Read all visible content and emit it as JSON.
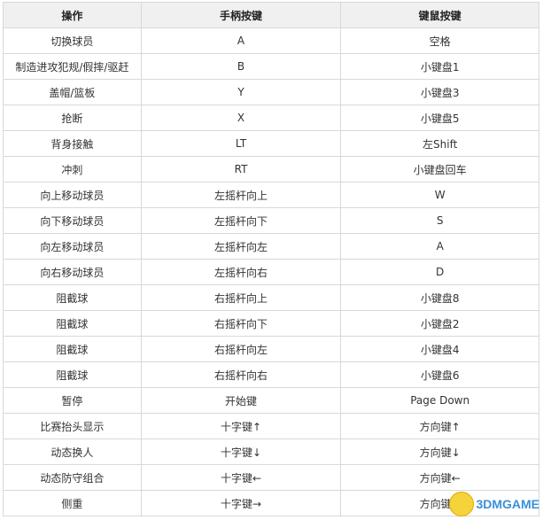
{
  "table": {
    "headers": [
      "操作",
      "手柄按键",
      "键鼠按键"
    ],
    "rows": [
      [
        "切换球员",
        "A",
        "空格"
      ],
      [
        "制造进攻犯规/假摔/驱赶",
        "B",
        "小键盘1"
      ],
      [
        "盖帽/篮板",
        "Y",
        "小键盘3"
      ],
      [
        "抢断",
        "X",
        "小键盘5"
      ],
      [
        "背身接触",
        "LT",
        "左Shift"
      ],
      [
        "冲刺",
        "RT",
        "小键盘回车"
      ],
      [
        "向上移动球员",
        "左摇杆向上",
        "W"
      ],
      [
        "向下移动球员",
        "左摇杆向下",
        "S"
      ],
      [
        "向左移动球员",
        "左摇杆向左",
        "A"
      ],
      [
        "向右移动球员",
        "左摇杆向右",
        "D"
      ],
      [
        "阻截球",
        "右摇杆向上",
        "小键盘8"
      ],
      [
        "阻截球",
        "右摇杆向下",
        "小键盘2"
      ],
      [
        "阻截球",
        "右摇杆向左",
        "小键盘4"
      ],
      [
        "阻截球",
        "右摇杆向右",
        "小键盘6"
      ],
      [
        "暂停",
        "开始键",
        "Page Down"
      ],
      [
        "比赛抬头显示",
        "十字键↑",
        "方向键↑"
      ],
      [
        "动态换人",
        "十字键↓",
        "方向键↓"
      ],
      [
        "动态防守组合",
        "十字键←",
        "方向键←"
      ],
      [
        "侧重",
        "十字键→",
        "方向键→"
      ]
    ]
  },
  "watermark": {
    "text": "3DMGAME",
    "icon": "chick-mascot-icon"
  }
}
